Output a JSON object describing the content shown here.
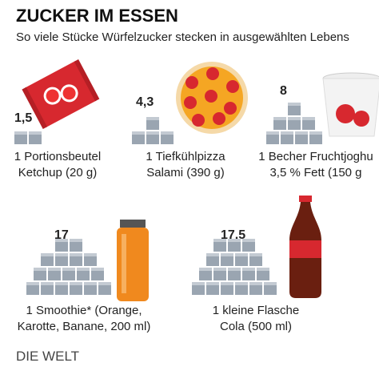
{
  "header": {
    "title": "ZUCKER IM ESSEN",
    "subtitle": "So viele Stücke Würfelzucker stecken in ausgewählten Lebens"
  },
  "items": [
    {
      "amount": "1,5",
      "label": [
        "1 Portionsbeutel",
        "Ketchup (20 g)"
      ]
    },
    {
      "amount": "4,3",
      "label": [
        "1 Tiefkühlpizza",
        "Salami (390 g)"
      ]
    },
    {
      "amount": "8",
      "label": [
        "1 Becher Fruchtjoghu",
        "3,5 % Fett (150 g"
      ]
    },
    {
      "amount": "17",
      "label": [
        "1 Smoothie* (Orange,",
        "Karotte, Banane, 200 ml)"
      ]
    },
    {
      "amount": "17,5",
      "label": [
        "1 kleine Flasche",
        "Cola (500 ml)"
      ]
    }
  ],
  "footer": {
    "logo": "DIE WELT"
  }
}
